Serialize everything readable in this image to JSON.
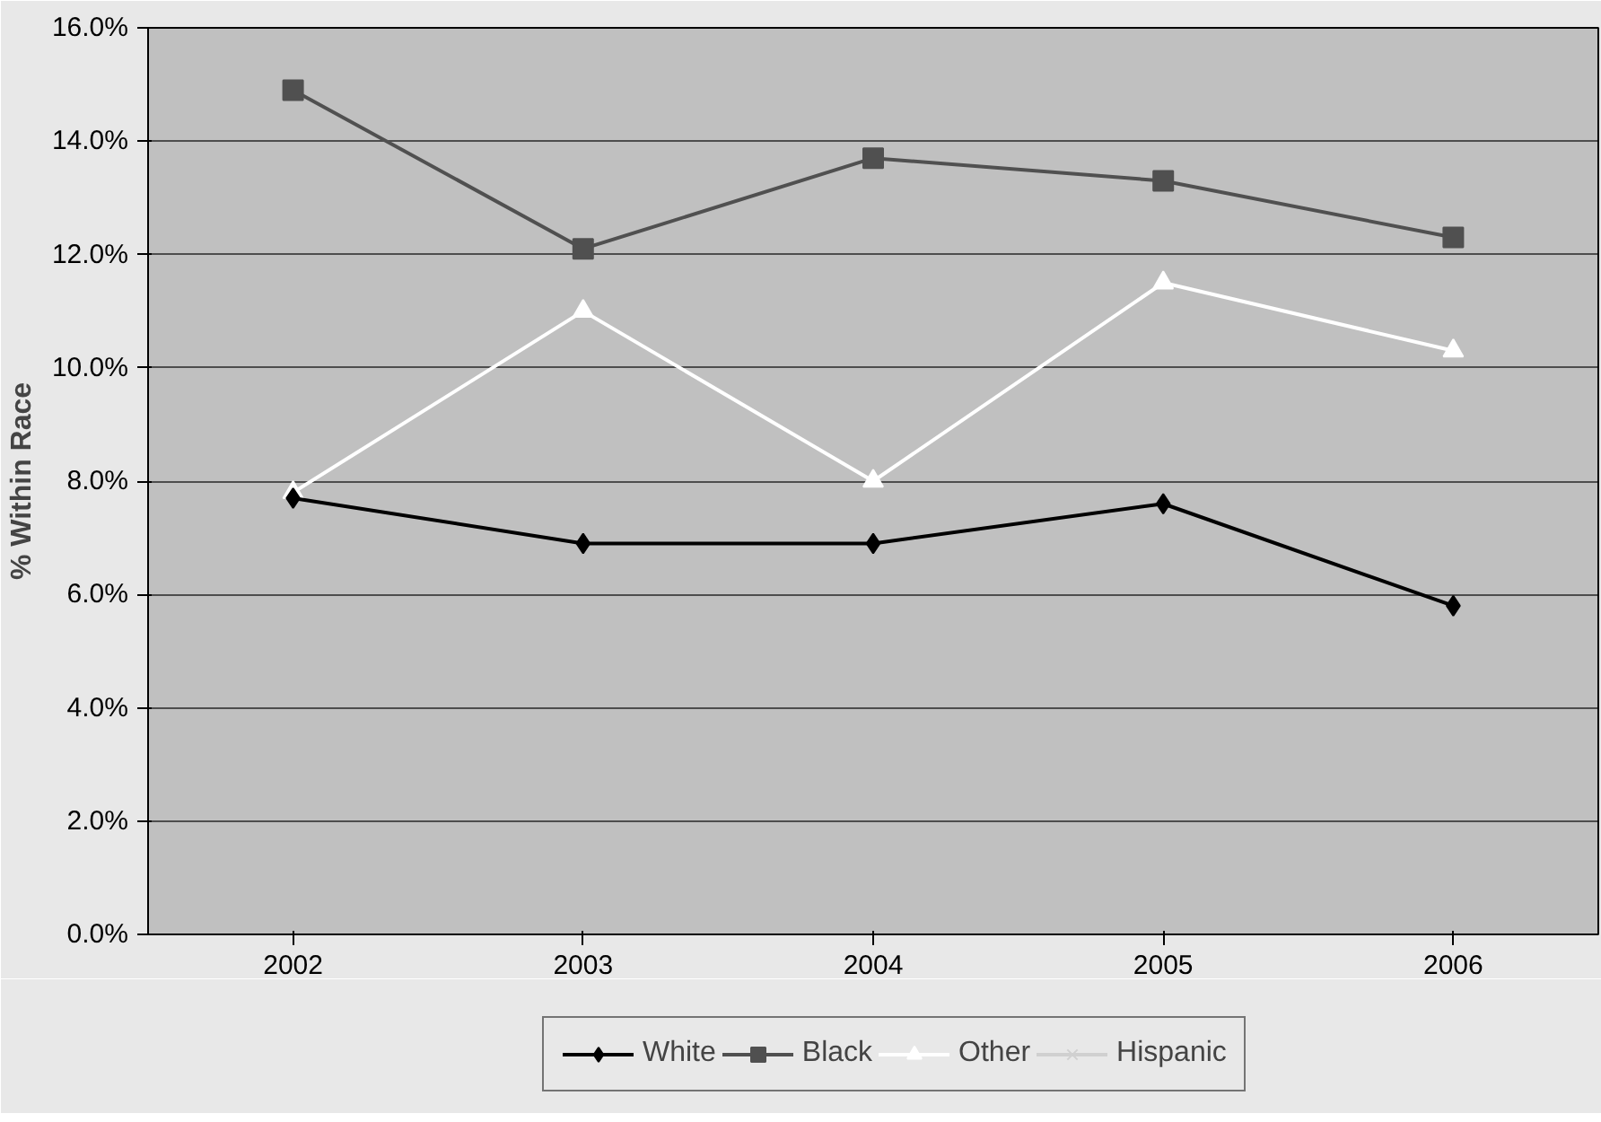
{
  "chart_data": {
    "type": "line",
    "ylabel": "% Within Race",
    "categories": [
      "2002",
      "2003",
      "2004",
      "2005",
      "2006"
    ],
    "series": [
      {
        "name": "White",
        "color": "#000000",
        "marker": "diamond",
        "values": [
          7.7,
          6.9,
          6.9,
          7.6,
          5.8
        ]
      },
      {
        "name": "Black",
        "color": "#505050",
        "marker": "square",
        "values": [
          14.9,
          12.1,
          13.7,
          13.3,
          12.3
        ]
      },
      {
        "name": "Other",
        "color": "#ffffff",
        "marker": "triangle",
        "values": [
          7.8,
          11.0,
          8.0,
          11.5,
          10.3
        ]
      },
      {
        "name": "Hispanic",
        "color": "#d0d0d0",
        "marker": "cross",
        "values": [
          null,
          null,
          null,
          null,
          null
        ]
      }
    ],
    "ylim": [
      0,
      16
    ],
    "yticks": [
      {
        "value": 0,
        "label": "0.0%"
      },
      {
        "value": 2,
        "label": "2.0%"
      },
      {
        "value": 4,
        "label": "4.0%"
      },
      {
        "value": 6,
        "label": "6.0%"
      },
      {
        "value": 8,
        "label": "8.0%"
      },
      {
        "value": 10,
        "label": "10.0%"
      },
      {
        "value": 12,
        "label": "12.0%"
      },
      {
        "value": 14,
        "label": "14.0%"
      },
      {
        "value": 16,
        "label": "16.0%"
      }
    ],
    "grid": "y",
    "legend": "bottom"
  }
}
